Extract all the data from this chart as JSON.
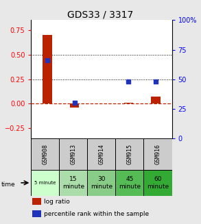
{
  "title": "GDS33 / 3317",
  "samples": [
    "GSM908",
    "GSM913",
    "GSM914",
    "GSM915",
    "GSM916"
  ],
  "time_labels": [
    "5 minute",
    "15\nminute",
    "30\nminute",
    "45\nminute",
    "60\nminute"
  ],
  "time_colors": [
    "#ccffcc",
    "#aaddaa",
    "#88cc88",
    "#55bb55",
    "#33aa33"
  ],
  "log_ratio": [
    0.7,
    -0.04,
    0.0,
    0.01,
    0.07
  ],
  "percentile_rank": [
    66,
    30,
    null,
    48,
    48
  ],
  "ylim_left": [
    -0.35,
    0.85
  ],
  "ylim_right": [
    0,
    100
  ],
  "yticks_left": [
    -0.25,
    0,
    0.25,
    0.5,
    0.75
  ],
  "yticks_right": [
    0,
    25,
    50,
    75,
    100
  ],
  "dotted_lines": [
    0.25,
    0.5
  ],
  "bar_color": "#bb2200",
  "scatter_color": "#2233bb",
  "bar_width": 0.35,
  "bg_color": "#e8e8e8",
  "plot_bg": "#ffffff",
  "sample_cell_color": "#cccccc",
  "legend_bar_label": "log ratio",
  "legend_scatter_label": "percentile rank within the sample"
}
